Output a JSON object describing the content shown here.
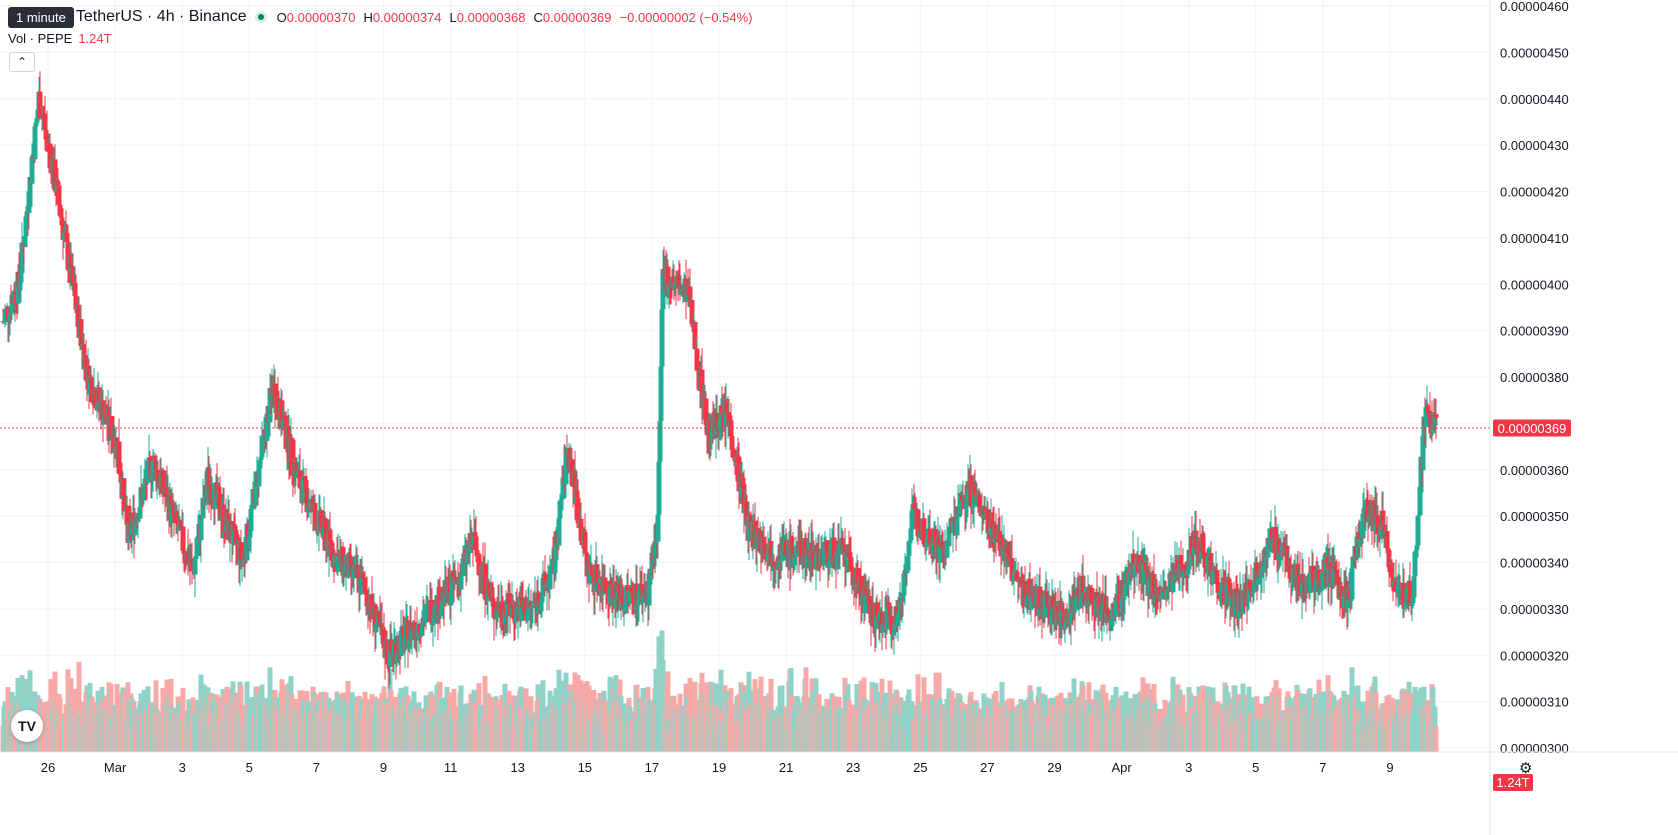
{
  "header": {
    "tooltip": "1 minute",
    "symbol": "TetherUS · 4h · Binance",
    "ohlc": {
      "o_label": "O",
      "o": "0.00000370",
      "h_label": "H",
      "h": "0.00000374",
      "l_label": "L",
      "l": "0.00000368",
      "c_label": "C",
      "c": "0.00000369",
      "change": "−0.00000002 (−0.54%)"
    },
    "volume_label": "Vol · PEPE",
    "volume_value": "1.24T"
  },
  "last_price_badge": "0.00000369",
  "volume_badge": "1.24T",
  "colors": {
    "up": "#22ab94",
    "down": "#f23645",
    "up_vol": "#8fd3c8",
    "down_vol": "#f7a9a7"
  },
  "icons": {
    "collapse": "chevron-up-icon",
    "logo": "tradingview-logo",
    "settings": "gear-icon"
  },
  "logo_text": "TV",
  "chart_data": {
    "type": "candlestick",
    "price_ticks": [
      "0.00000460",
      "0.00000450",
      "0.00000440",
      "0.00000430",
      "0.00000420",
      "0.00000410",
      "0.00000400",
      "0.00000390",
      "0.00000380",
      "0.00000370",
      "0.00000360",
      "0.00000350",
      "0.00000340",
      "0.00000330",
      "0.00000320",
      "0.00000310",
      "0.00000300"
    ],
    "price_range": [
      3e-06,
      4.6e-06
    ],
    "last_price": 3.69e-06,
    "time_ticks": [
      "26",
      "Mar",
      "3",
      "5",
      "7",
      "9",
      "11",
      "13",
      "15",
      "17",
      "19",
      "21",
      "23",
      "25",
      "27",
      "29",
      "Apr",
      "3",
      "5",
      "7",
      "9"
    ],
    "anchors": [
      [
        3.92,
        0
      ],
      [
        4.0,
        16
      ],
      [
        4.4,
        36
      ],
      [
        4.25,
        50
      ],
      [
        3.8,
        85
      ],
      [
        3.65,
        115
      ],
      [
        3.45,
        125
      ],
      [
        3.62,
        150
      ],
      [
        3.38,
        190
      ],
      [
        3.58,
        205
      ],
      [
        3.4,
        240
      ],
      [
        3.78,
        270
      ],
      [
        3.58,
        295
      ],
      [
        3.42,
        330
      ],
      [
        3.35,
        360
      ],
      [
        3.2,
        385
      ],
      [
        3.28,
        420
      ],
      [
        3.36,
        455
      ],
      [
        3.45,
        470
      ],
      [
        3.3,
        490
      ],
      [
        3.3,
        530
      ],
      [
        3.38,
        550
      ],
      [
        3.65,
        565
      ],
      [
        3.38,
        585
      ],
      [
        3.32,
        620
      ],
      [
        3.34,
        645
      ],
      [
        3.48,
        655
      ],
      [
        4.02,
        660
      ],
      [
        3.98,
        685
      ],
      [
        3.68,
        705
      ],
      [
        3.72,
        725
      ],
      [
        3.48,
        745
      ],
      [
        3.42,
        770
      ],
      [
        3.42,
        800
      ],
      [
        3.42,
        840
      ],
      [
        3.28,
        870
      ],
      [
        3.28,
        895
      ],
      [
        3.5,
        910
      ],
      [
        3.42,
        940
      ],
      [
        3.56,
        965
      ],
      [
        3.48,
        990
      ],
      [
        3.35,
        1015
      ],
      [
        3.32,
        1035
      ],
      [
        3.28,
        1060
      ],
      [
        3.34,
        1080
      ],
      [
        3.28,
        1110
      ],
      [
        3.4,
        1130
      ],
      [
        3.32,
        1160
      ],
      [
        3.45,
        1195
      ],
      [
        3.36,
        1215
      ],
      [
        3.3,
        1235
      ],
      [
        3.45,
        1270
      ],
      [
        3.35,
        1300
      ],
      [
        3.38,
        1325
      ],
      [
        3.32,
        1345
      ],
      [
        3.52,
        1362
      ],
      [
        3.48,
        1380
      ],
      [
        3.32,
        1395
      ],
      [
        3.34,
        1410
      ],
      [
        3.72,
        1422
      ],
      [
        3.69,
        1433
      ]
    ]
  }
}
